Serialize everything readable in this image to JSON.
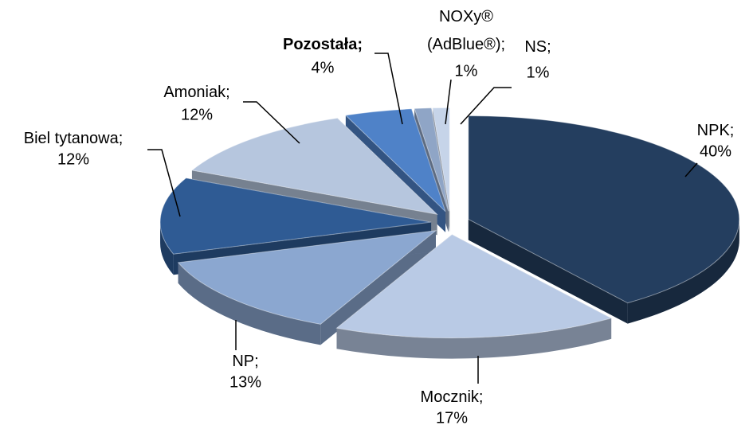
{
  "chart_data": {
    "type": "pie",
    "categories": [
      "NPK;",
      "Mocznik;",
      "NP;",
      "Biel tytanowa;",
      "Amoniak;",
      "Pozostała;",
      "NOXy®\n(AdBlue®);",
      "NS;"
    ],
    "values": [
      40,
      17,
      13,
      12,
      12,
      4,
      1,
      1
    ],
    "value_labels": [
      "40%",
      "17%",
      "13%",
      "12%",
      "12%",
      "4%",
      "1%",
      "1%"
    ],
    "colors": [
      "#243e5f",
      "#b9cae5",
      "#8ba7d0",
      "#2f5b94",
      "#b6c6de",
      "#4f82c8",
      "#8fa5c6",
      "#c6d4e9"
    ]
  }
}
